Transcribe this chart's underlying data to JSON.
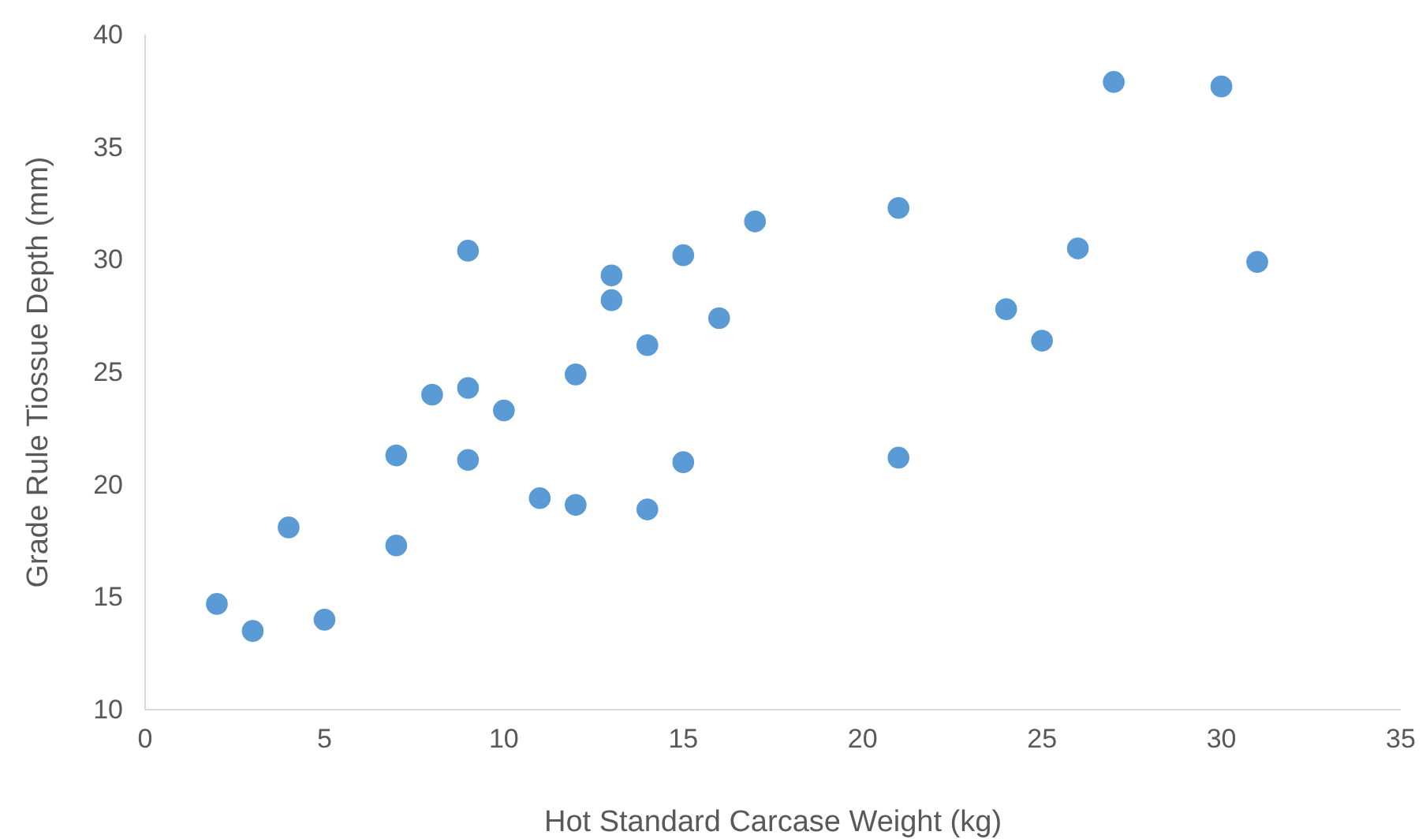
{
  "chart_data": {
    "type": "scatter",
    "xlabel": "Hot Standard Carcase Weight (kg)",
    "ylabel": "Grade Rule Tiossue Depth (mm)",
    "x": [
      2,
      3,
      4,
      5,
      7,
      7,
      8,
      9,
      9,
      9,
      10,
      11,
      12,
      12,
      13,
      13,
      14,
      14,
      15,
      15,
      16,
      17,
      21,
      21,
      24,
      25,
      26,
      27,
      30,
      31
    ],
    "series": [
      {
        "color": "#5b9bd5",
        "values": [
          14.7,
          13.5,
          18.1,
          14,
          21.3,
          17.3,
          24,
          30.4,
          24.3,
          21.1,
          23.3,
          19.4,
          24.9,
          19.1,
          29.3,
          28.2,
          26.2,
          18.9,
          30.2,
          21,
          27.4,
          31.7,
          32.3,
          21.2,
          27.8,
          26.4,
          30.5,
          37.9,
          37.7,
          29.9
        ]
      }
    ],
    "xlim": [
      0,
      35
    ],
    "xticks": [
      0,
      5,
      10,
      15,
      20,
      25,
      30,
      35
    ],
    "ylim": [
      10,
      40
    ],
    "yticks": [
      10,
      15,
      20,
      25,
      30,
      35,
      40
    ],
    "grid": false,
    "marker": "circle"
  }
}
